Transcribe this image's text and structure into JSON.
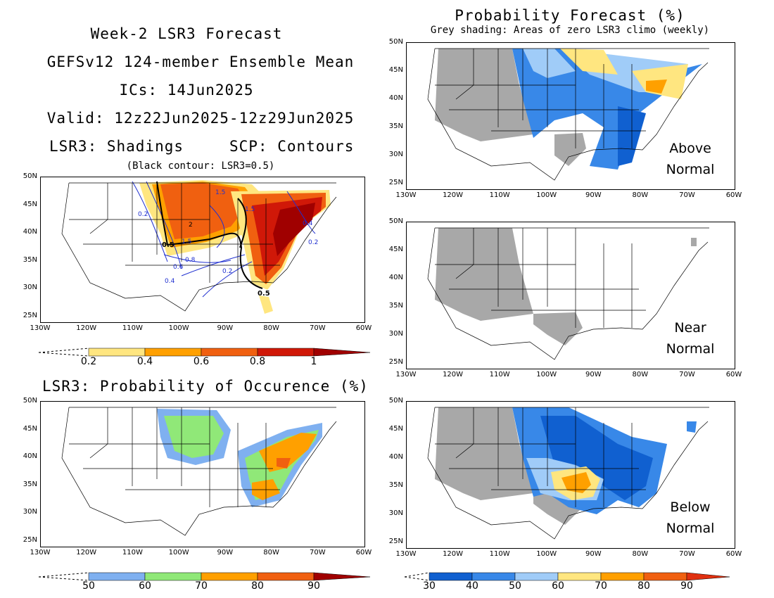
{
  "header": {
    "line1": "Week-2 LSR3 Forecast",
    "line2": "GEFSv12 124-member Ensemble Mean",
    "line3": "ICs: 14Jun2025",
    "line4": "Valid: 12z22Jun2025-12z29Jun2025",
    "line5_left": "LSR3: Shadings",
    "line5_right": "SCP: Contours",
    "line6": "(Black contour: LSR3=0.5)"
  },
  "right_header": {
    "title": "Probability Forecast (%)",
    "subtitle": "Grey shading: Areas of zero LSR3 climo (weekly)"
  },
  "occurrence_title": "LSR3: Probability of Occurence (%)",
  "lat_labels": [
    "50N",
    "45N",
    "40N",
    "35N",
    "30N",
    "25N"
  ],
  "lon_labels": [
    "130W",
    "120W",
    "110W",
    "100W",
    "90W",
    "80W",
    "70W",
    "60W"
  ],
  "panel_labels": {
    "above": [
      "Above",
      "Normal"
    ],
    "near": [
      "Near",
      "Normal"
    ],
    "below": [
      "Below",
      "Normal"
    ]
  },
  "contour_labels": {
    "lsr3": "0.5",
    "scp": [
      "0.2",
      "0.2",
      "0.4",
      "0.6",
      "0.8",
      "1.5",
      "2",
      "1.5",
      "1.5",
      "0.4",
      "0.2"
    ]
  },
  "colorbars": {
    "lsr3": {
      "ticks": [
        "0.2",
        "0.4",
        "0.6",
        "0.8",
        "1"
      ],
      "colors": [
        "#ffe680",
        "#ffa000",
        "#f06010",
        "#d01808",
        "#a00000"
      ]
    },
    "occurrence": {
      "ticks": [
        "50",
        "60",
        "70",
        "80",
        "90"
      ],
      "colors": [
        "#7fb0f0",
        "#90e878",
        "#ffa000",
        "#f06010",
        "#a00000"
      ]
    },
    "probability": {
      "ticks": [
        "30",
        "40",
        "50",
        "60",
        "70",
        "80",
        "90"
      ],
      "colors": [
        "#1060d0",
        "#3888e8",
        "#a0ccf8",
        "#ffe680",
        "#ffa000",
        "#f06010",
        "#e03010"
      ]
    }
  },
  "colors": {
    "grey_zero_climo": "#a8a8a8",
    "scp_contour": "#2030d0"
  }
}
